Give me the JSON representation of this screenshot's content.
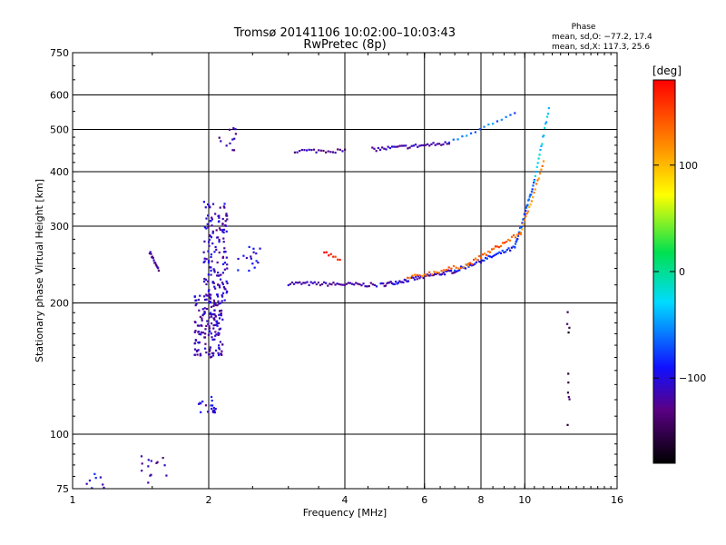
{
  "chart_data": {
    "type": "scatter",
    "title": "Tromsø 20141106 10:02:00–10:03:43",
    "subtitle": "RwPretec (8p)",
    "xlabel": "Frequency [MHz]",
    "ylabel": "Stationary phase Virtual Height [km]",
    "x_scale": "log2",
    "y_scale": "log",
    "xlim": [
      1,
      16
    ],
    "ylim": [
      75,
      750
    ],
    "x_ticks": [
      1,
      2,
      4,
      6,
      8,
      10,
      16
    ],
    "y_ticks": [
      75,
      100,
      200,
      300,
      400,
      500,
      600,
      750
    ],
    "x_gridlines": [
      2,
      4,
      6,
      8,
      10
    ],
    "y_gridlines": [
      100,
      200,
      300,
      400,
      500,
      600
    ],
    "grid": true,
    "phase_stats": {
      "title": "Phase",
      "o_line": "mean, sd,O: −77.2, 17.4",
      "x_line": "mean, sd,X: 117.3, 25.6"
    },
    "colorbar": {
      "label": "[deg]",
      "range": [
        -180,
        180
      ],
      "ticks": [
        "100",
        "0",
        "−100"
      ],
      "tick_values": [
        100,
        0,
        -100
      ]
    },
    "series": [
      {
        "traces": [
          {
            "x0": 3.0,
            "x1": 4.7,
            "y0": 222,
            "y1": 220,
            "phase": -118,
            "n": 48
          },
          {
            "x0": 4.8,
            "x1": 7.0,
            "y0": 220,
            "y1": 237,
            "phase": -112,
            "n": 60
          },
          {
            "x0": 7.0,
            "x1": 9.5,
            "y0": 237,
            "y1": 268,
            "phase": -90,
            "n": 40
          },
          {
            "x0": 9.5,
            "x1": 10.5,
            "y0": 268,
            "y1": 380,
            "phase": -70,
            "n": 30
          },
          {
            "x0": 10.5,
            "x1": 11.3,
            "y0": 380,
            "y1": 560,
            "phase": -30,
            "n": 18
          },
          {
            "x0": 3.1,
            "x1": 4.0,
            "y0": 447,
            "y1": 447,
            "phase": -122,
            "n": 22
          },
          {
            "x0": 4.6,
            "x1": 6.8,
            "y0": 450,
            "y1": 465,
            "phase": -118,
            "n": 40
          },
          {
            "x0": 6.8,
            "x1": 9.5,
            "y0": 470,
            "y1": 540,
            "phase": -60,
            "n": 16
          },
          {
            "x0": 1.48,
            "x1": 1.55,
            "y0": 262,
            "y1": 237,
            "phase": -125,
            "n": 14
          }
        ]
      },
      {
        "traces": [
          {
            "x0": 5.5,
            "x1": 7.5,
            "y0": 228,
            "y1": 245,
            "phase": 130,
            "n": 26
          },
          {
            "x0": 7.5,
            "x1": 9.8,
            "y0": 245,
            "y1": 290,
            "phase": 140,
            "n": 30
          },
          {
            "x0": 9.8,
            "x1": 11.0,
            "y0": 290,
            "y1": 420,
            "phase": 120,
            "n": 20
          },
          {
            "x0": 3.6,
            "x1": 3.9,
            "y0": 262,
            "y1": 250,
            "phase": 160,
            "n": 8
          }
        ]
      },
      {
        "clusters": [
          {
            "x0": 1.86,
            "x1": 2.15,
            "y0": 150,
            "y1": 210,
            "phase": -115,
            "n": 160
          },
          {
            "x0": 1.95,
            "x1": 2.2,
            "y0": 200,
            "y1": 345,
            "phase": -110,
            "n": 140
          },
          {
            "x0": 2.08,
            "x1": 2.3,
            "y0": 440,
            "y1": 510,
            "phase": -120,
            "n": 12
          },
          {
            "x0": 1.9,
            "x1": 2.08,
            "y0": 112,
            "y1": 122,
            "phase": -105,
            "n": 20
          },
          {
            "x0": 1.4,
            "x1": 1.62,
            "y0": 75,
            "y1": 90,
            "phase": -120,
            "n": 14
          },
          {
            "x0": 1.02,
            "x1": 1.2,
            "y0": 75,
            "y1": 82,
            "phase": -100,
            "n": 8
          },
          {
            "x0": 12.4,
            "x1": 12.6,
            "y0": 100,
            "y1": 200,
            "phase": -150,
            "n": 10
          },
          {
            "x0": 2.3,
            "x1": 2.6,
            "y0": 230,
            "y1": 270,
            "phase": -100,
            "n": 16
          }
        ]
      }
    ]
  }
}
